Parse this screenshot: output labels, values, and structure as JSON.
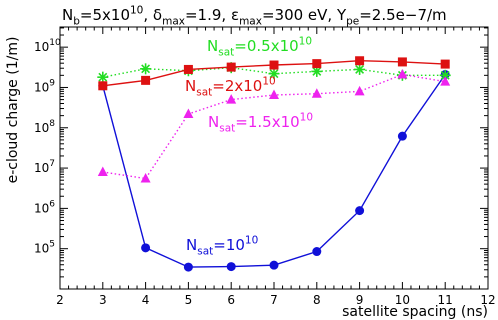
{
  "chart_data": {
    "type": "line",
    "title_parts": [
      {
        "t": "N",
        "k": "n"
      },
      {
        "t": "b",
        "k": "sub"
      },
      {
        "t": "=5x10",
        "k": "n"
      },
      {
        "t": "10",
        "k": "sup"
      },
      {
        "t": ", ",
        "k": "n"
      },
      {
        "t": "δ",
        "k": "n"
      },
      {
        "t": "max",
        "k": "sub"
      },
      {
        "t": "=1.9, ",
        "k": "n"
      },
      {
        "t": "ε",
        "k": "n"
      },
      {
        "t": "max",
        "k": "sub"
      },
      {
        "t": "=300 eV, Y",
        "k": "n"
      },
      {
        "t": "pe",
        "k": "sub"
      },
      {
        "t": "=2.5e−7/m",
        "k": "n"
      }
    ],
    "xlabel": "satellite spacing (ns)",
    "ylabel": "e-cloud charge (1/m)",
    "xlim": [
      2,
      12
    ],
    "ylim_log10": [
      4,
      10.5
    ],
    "y_scale": "log",
    "xticks": [
      2,
      3,
      4,
      5,
      6,
      7,
      8,
      9,
      10,
      11,
      12
    ],
    "ytick_base": "10",
    "ytick_exponents": [
      5,
      6,
      7,
      8,
      9,
      10
    ],
    "grid": false,
    "series": [
      {
        "label_parts": [
          {
            "t": "N",
            "k": "n"
          },
          {
            "t": "sat",
            "k": "sub"
          },
          {
            "t": "=10",
            "k": "n"
          },
          {
            "t": "10",
            "k": "sup"
          }
        ],
        "color": "#1010d8",
        "dash": "solid",
        "marker": "circle",
        "x": [
          3,
          4,
          5,
          6,
          7,
          8,
          9,
          10,
          11
        ],
        "y": [
          1100000000.0,
          105000.0,
          35000.0,
          36000.0,
          39000.0,
          85000.0,
          880000.0,
          62000000.0,
          2100000000.0
        ]
      },
      {
        "label_parts": [
          {
            "t": "N",
            "k": "n"
          },
          {
            "t": "sat",
            "k": "sub"
          },
          {
            "t": "=0.5x10",
            "k": "n"
          },
          {
            "t": "10",
            "k": "sup"
          }
        ],
        "color": "#22dd22",
        "dash": "dotted",
        "marker": "star",
        "x": [
          3,
          4,
          5,
          6,
          7,
          8,
          9,
          10,
          11
        ],
        "y": [
          1800000000.0,
          2900000000.0,
          2600000000.0,
          3100000000.0,
          2200000000.0,
          2500000000.0,
          2800000000.0,
          2000000000.0,
          2000000000.0
        ]
      },
      {
        "label_parts": [
          {
            "t": "N",
            "k": "n"
          },
          {
            "t": "sat",
            "k": "sub"
          },
          {
            "t": "=1.5x10",
            "k": "n"
          },
          {
            "t": "10",
            "k": "sup"
          }
        ],
        "color": "#ee22ee",
        "dash": "dotted",
        "marker": "triangle",
        "x": [
          3,
          4,
          5,
          6,
          7,
          8,
          9,
          10,
          11
        ],
        "y": [
          8000000.0,
          5500000.0,
          220000000.0,
          500000000.0,
          650000000.0,
          700000000.0,
          800000000.0,
          2100000000.0,
          1400000000.0
        ]
      },
      {
        "label_parts": [
          {
            "t": "N",
            "k": "n"
          },
          {
            "t": "sat",
            "k": "sub"
          },
          {
            "t": "=2x10",
            "k": "n"
          },
          {
            "t": "10",
            "k": "sup"
          }
        ],
        "color": "#dd1111",
        "dash": "solid",
        "marker": "square",
        "x": [
          3,
          4,
          5,
          6,
          7,
          8,
          9,
          10,
          11
        ],
        "y": [
          1100000000.0,
          1500000000.0,
          2800000000.0,
          3200000000.0,
          3600000000.0,
          3900000000.0,
          4600000000.0,
          4300000000.0,
          3800000000.0
        ]
      }
    ]
  }
}
